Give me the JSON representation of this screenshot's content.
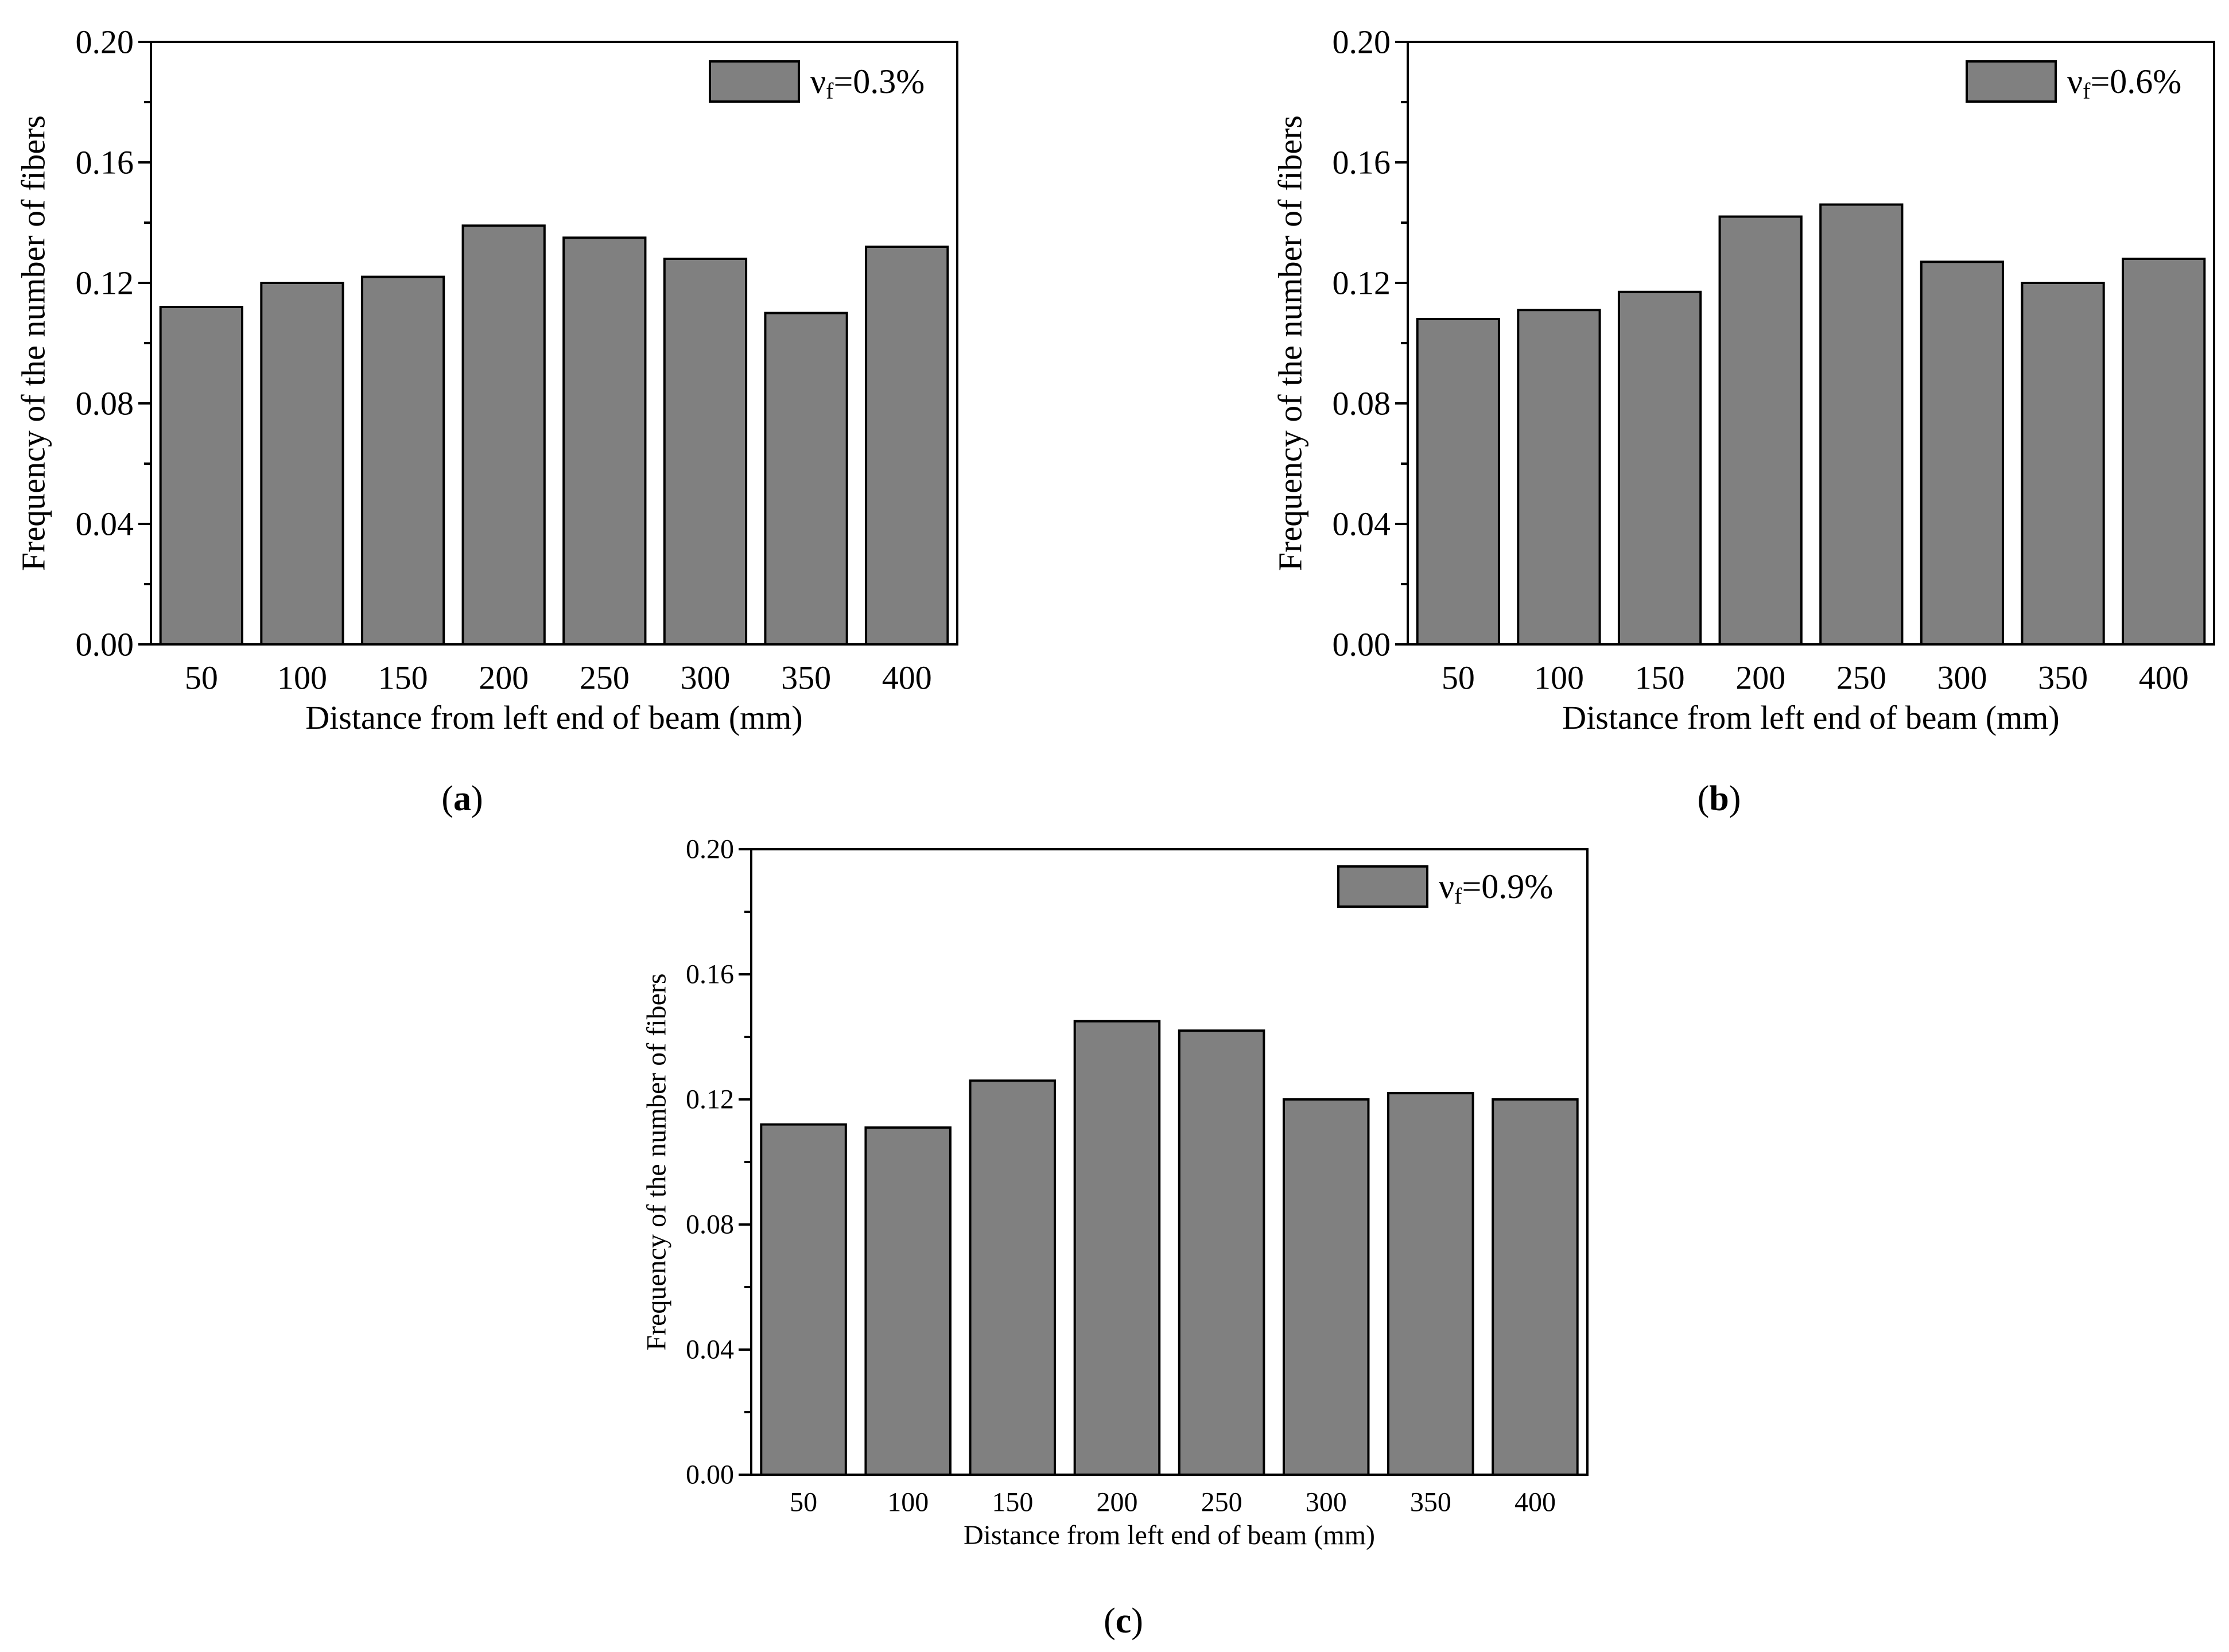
{
  "chart_data": [
    {
      "type": "bar",
      "panel_label": "a",
      "categories": [
        "50",
        "100",
        "150",
        "200",
        "250",
        "300",
        "350",
        "400"
      ],
      "values": [
        0.112,
        0.12,
        0.122,
        0.139,
        0.135,
        0.128,
        0.11,
        0.132
      ],
      "series_name": "vf=0.3%",
      "legend": {
        "symbol": "ν",
        "subscript": "f",
        "value_text": "=0.3%"
      },
      "title": "",
      "xlabel": "Distance from left end of beam  (mm)",
      "ylabel": "Frequency of the number of fibers",
      "ylim": [
        0,
        0.2
      ],
      "yticks": [
        "0.00",
        "0.04",
        "0.08",
        "0.12",
        "0.16",
        "0.20"
      ],
      "grid": false,
      "legend_position": "top-right",
      "bar_color": "#808080"
    },
    {
      "type": "bar",
      "panel_label": "b",
      "categories": [
        "50",
        "100",
        "150",
        "200",
        "250",
        "300",
        "350",
        "400"
      ],
      "values": [
        0.108,
        0.111,
        0.117,
        0.142,
        0.146,
        0.127,
        0.12,
        0.128
      ],
      "series_name": "vf=0.6%",
      "legend": {
        "symbol": "ν",
        "subscript": "f",
        "value_text": "=0.6%"
      },
      "title": "",
      "xlabel": "Distance from left end of beam  (mm)",
      "ylabel": "Frequency of the number of fibers",
      "ylim": [
        0,
        0.2
      ],
      "yticks": [
        "0.00",
        "0.04",
        "0.08",
        "0.12",
        "0.16",
        "0.20"
      ],
      "grid": false,
      "legend_position": "top-right",
      "bar_color": "#808080"
    },
    {
      "type": "bar",
      "panel_label": "c",
      "categories": [
        "50",
        "100",
        "150",
        "200",
        "250",
        "300",
        "350",
        "400"
      ],
      "values": [
        0.112,
        0.111,
        0.126,
        0.145,
        0.142,
        0.12,
        0.122,
        0.12
      ],
      "series_name": "vf=0.9%",
      "legend": {
        "symbol": "ν",
        "subscript": "f",
        "value_text": "=0.9%"
      },
      "title": "",
      "xlabel": "Distance from left end of beam  (mm)",
      "ylabel": "Frequency of the number of fibers",
      "ylim": [
        0,
        0.2
      ],
      "yticks": [
        "0.00",
        "0.04",
        "0.08",
        "0.12",
        "0.16",
        "0.20"
      ],
      "grid": false,
      "legend_position": "top-right",
      "bar_color": "#808080"
    }
  ]
}
